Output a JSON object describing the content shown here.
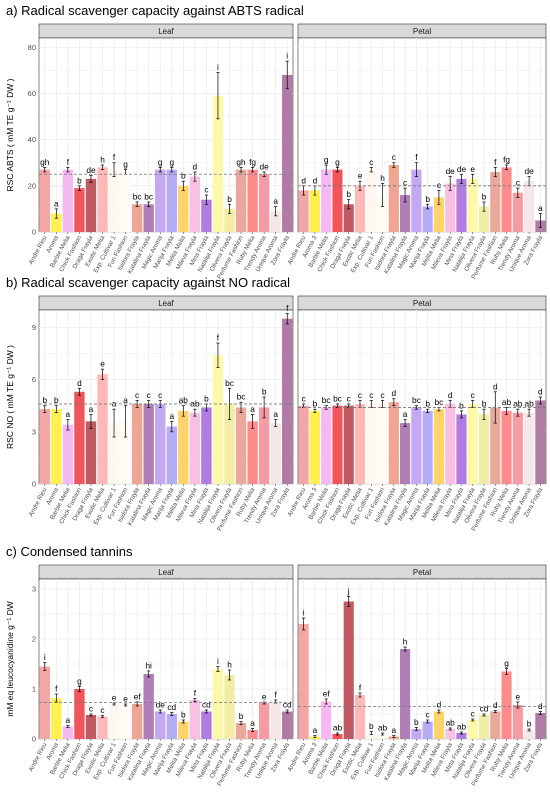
{
  "categories_leaf": [
    "Andre Rieu",
    "Aroma",
    "Barbie Melia",
    "Chick Fashion",
    "Draga Frayla",
    "Exotic Melia",
    "Exp. Cultivar 1",
    "Fun Fashion",
    "Isidora Frayla",
    "Katalina Frayla",
    "Magic Aroma",
    "Marija Frayla",
    "Melita Melia",
    "Mileva Frayla",
    "Mina Frayla",
    "Natalija Frayla",
    "Olivera Frayla",
    "Perfume Fashion",
    "Ruby Melia",
    "Trendy Aroma",
    "Unique Aroma",
    "Zora Frayla"
  ],
  "categories_petal": [
    "Andre Rieu",
    "Aroma 3",
    "Barbie Melia",
    "Chick Fashion",
    "Draga Frayla",
    "Exotic Melia",
    "Exp. Cultivar 1",
    "Fun Fashion",
    "Isidora Frayla",
    "Katalina Frayla",
    "Magic Aroma",
    "Marija Frayla",
    "Melita Melia",
    "Mileva Frayla",
    "Mina Frayla",
    "Natalija Frayla",
    "Olivera Frayla",
    "Perfume Fashion",
    "Ruby Melia",
    "Trendy Aroma",
    "Unique Aroma",
    "Zora Frayla"
  ],
  "colors": [
    "#f4a6a6",
    "#fff04f",
    "#f6b8f3",
    "#f0555b",
    "#c05a63",
    "#ffb8b8",
    "#fff6f1",
    "#fffaf4",
    "#eea591",
    "#b07fb5",
    "#c4a8f1",
    "#b5abf7",
    "#ffd36a",
    "#f9c0e3",
    "#b27be1",
    "#fcfaaa",
    "#f2eda4",
    "#e8a99c",
    "#ff8c8c",
    "#f49ba3",
    "#f5e6e8",
    "#b07ca6"
  ],
  "charts": [
    {
      "title": "a) Radical scavenger capacity against ABTS radical",
      "ylabel": "RSC ABTS ( mM TE g⁻¹ DW )",
      "yticks": [
        "0",
        "20",
        "40",
        "60",
        "80"
      ],
      "ylim": [
        0,
        84
      ],
      "panels": [
        {
          "strip": "Leaf",
          "values": [
            27,
            8,
            27,
            19,
            23,
            28,
            27,
            26,
            12,
            12,
            27,
            27,
            20,
            24,
            14,
            59,
            10,
            27,
            27,
            25,
            9,
            68
          ],
          "errors": [
            1,
            2,
            1,
            1,
            1.5,
            1,
            3,
            1,
            1,
            1,
            1,
            1,
            2,
            2,
            2,
            10,
            2,
            1,
            1,
            1,
            2,
            6
          ],
          "letters": [
            "gh",
            "a",
            "f",
            "b",
            "de",
            "h",
            "f",
            "g",
            "bc",
            "bc",
            "g",
            "g",
            "b",
            "d",
            "c",
            "i",
            "b",
            "gh",
            "fg",
            "de",
            "a",
            "i"
          ],
          "mean_line": 25
        },
        {
          "strip": "Petal",
          "values": [
            18,
            18,
            27,
            27,
            12,
            20,
            27,
            16,
            29,
            16,
            27,
            11,
            15,
            21,
            23,
            23,
            11,
            26,
            28,
            17,
            22,
            5
          ],
          "errors": [
            2,
            2,
            2,
            1,
            2,
            2,
            1,
            5,
            1,
            3,
            3,
            1,
            3,
            3,
            2,
            2,
            2,
            2,
            1,
            2,
            2,
            3
          ],
          "letters": [
            "d",
            "d",
            "g",
            "g",
            "b",
            "e",
            "c",
            "h",
            "c",
            "c",
            "f",
            "b",
            "c",
            "de",
            "de",
            "e",
            "b",
            "f",
            "fg",
            "c",
            "de",
            "a"
          ],
          "mean_line": 20
        }
      ]
    },
    {
      "title": "b) Radical scavenger capacity against NO radical",
      "ylabel": "RSC NO ( mM TE g⁻¹ DW )",
      "yticks": [
        "0",
        "3",
        "6",
        "9"
      ],
      "ylim": [
        0,
        10
      ],
      "panels": [
        {
          "strip": "Leaf",
          "values": [
            4.3,
            4.3,
            3.4,
            5.3,
            3.6,
            6.3,
            3.5,
            3.6,
            4.6,
            4.6,
            4.6,
            3.3,
            4.2,
            4.1,
            4.4,
            7.4,
            4.6,
            4.4,
            3.6,
            4.4,
            3.5,
            9.5
          ],
          "errors": [
            0.2,
            0.2,
            0.3,
            0.2,
            0.4,
            0.3,
            0.8,
            0.9,
            0.2,
            0.2,
            0.2,
            0.3,
            0.3,
            0.2,
            0.2,
            0.7,
            0.9,
            0.3,
            0.4,
            0.6,
            0.2,
            0.3
          ],
          "letters": [
            "b",
            "b",
            "a",
            "d",
            "a",
            "e",
            "a",
            "a",
            "c",
            "c",
            "c",
            "a",
            "ab",
            "ab",
            "b",
            "f",
            "bc",
            "bc",
            "a",
            "b",
            "a",
            "f"
          ],
          "mean_line": 4.6
        },
        {
          "strip": "Petal",
          "values": [
            4.5,
            4.2,
            4.4,
            4.5,
            4.5,
            4.6,
            4.6,
            4.6,
            4.7,
            3.5,
            4.4,
            4.2,
            4.3,
            4.6,
            4.0,
            4.6,
            4.0,
            4.4,
            4.2,
            4.1,
            4.1,
            4.8
          ],
          "errors": [
            0.1,
            0.1,
            0.1,
            0.1,
            0.1,
            0.2,
            0.2,
            0.2,
            0.2,
            0.2,
            0.1,
            0.1,
            0.1,
            0.2,
            0.2,
            0.2,
            0.3,
            0.9,
            0.2,
            0.2,
            0.2,
            0.2
          ],
          "letters": [
            "c",
            "b",
            "bc",
            "bc",
            "c",
            "c",
            "c",
            "c",
            "d",
            "a",
            "bc",
            "b",
            "bc",
            "d",
            "b",
            "c",
            "b",
            "d",
            "ab",
            "ab",
            "ab",
            "d"
          ],
          "mean_line": 4.4
        }
      ]
    },
    {
      "title": "c) Condensed tannins",
      "ylabel": "mM eq leucocyanidine g⁻¹ DW",
      "yticks": [
        "0",
        "1",
        "2",
        "3"
      ],
      "ylim": [
        0,
        3.2
      ],
      "panels": [
        {
          "strip": "Leaf",
          "values": [
            1.45,
            0.82,
            0.25,
            1.0,
            0.48,
            0.45,
            0.7,
            0.68,
            0.7,
            1.3,
            0.55,
            0.5,
            0.35,
            0.78,
            0.55,
            1.4,
            1.28,
            0.32,
            0.18,
            0.72,
            0.75,
            0.55
          ],
          "errors": [
            0.08,
            0.08,
            0.02,
            0.05,
            0.02,
            0.02,
            0.02,
            0.02,
            0.04,
            0.06,
            0.03,
            0.03,
            0.03,
            0.03,
            0.03,
            0.05,
            0.1,
            0.03,
            0.03,
            0.02,
            0.03,
            0.03
          ],
          "letters": [
            "i",
            "f",
            "a",
            "g",
            "c",
            "c",
            "e",
            "e",
            "ef",
            "hi",
            "de",
            "cd",
            "b",
            "f",
            "cd",
            "i",
            "h",
            "b",
            "a",
            "e",
            "f",
            "cd"
          ],
          "mean_line": 0.73
        },
        {
          "strip": "Petal",
          "values": [
            2.3,
            0.05,
            0.75,
            0.1,
            2.75,
            0.88,
            0.12,
            0.1,
            0.05,
            1.8,
            0.2,
            0.35,
            0.55,
            0.2,
            0.12,
            0.38,
            0.48,
            0.55,
            1.35,
            0.68,
            0.18,
            0.52
          ],
          "errors": [
            0.12,
            0.02,
            0.05,
            0.02,
            0.1,
            0.04,
            0.03,
            0.02,
            0.02,
            0.04,
            0.03,
            0.03,
            0.03,
            0.02,
            0.02,
            0.02,
            0.02,
            0.02,
            0.06,
            0.06,
            0.02,
            0.03
          ],
          "letters": [
            "i",
            "a",
            "ef",
            "ab",
            "j",
            "f",
            "b",
            "ab",
            "a",
            "h",
            "b",
            "c",
            "d",
            "ab",
            "ab",
            "c",
            "cd",
            "d",
            "g",
            "e",
            "b",
            "d"
          ],
          "mean_line": 0.65
        }
      ]
    }
  ]
}
